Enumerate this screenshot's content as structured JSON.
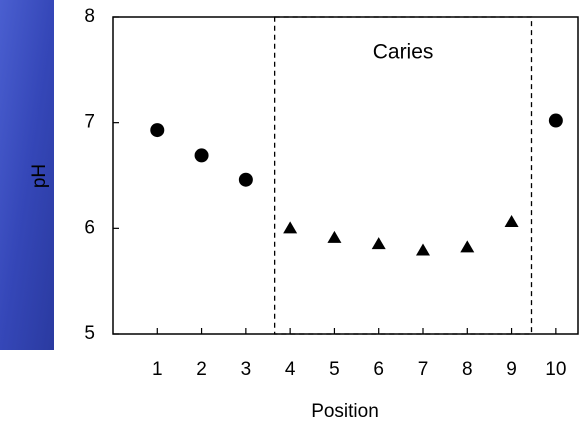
{
  "chart_data": {
    "type": "scatter",
    "x_label": "Position",
    "y_label": "pH",
    "series": [
      {
        "color": "#000000",
        "marker": "circle",
        "x": [
          1,
          2,
          3,
          10
        ],
        "values": [
          6.93,
          6.69,
          6.46,
          7.02
        ]
      },
      {
        "color": "#000000",
        "marker": "triangle",
        "x": [
          4,
          5,
          6,
          7,
          8,
          9
        ],
        "values": [
          6.0,
          5.91,
          5.85,
          5.79,
          5.82,
          6.06
        ]
      }
    ],
    "region": {
      "label": "Caries",
      "x": [
        3.65,
        9.45
      ]
    },
    "xlim": [
      0,
      10.5
    ],
    "xticks": [
      1,
      2,
      3,
      4,
      5,
      6,
      7,
      8,
      9,
      10
    ],
    "ylim": [
      5,
      8
    ],
    "yticks": [
      5,
      6,
      7,
      8
    ]
  }
}
